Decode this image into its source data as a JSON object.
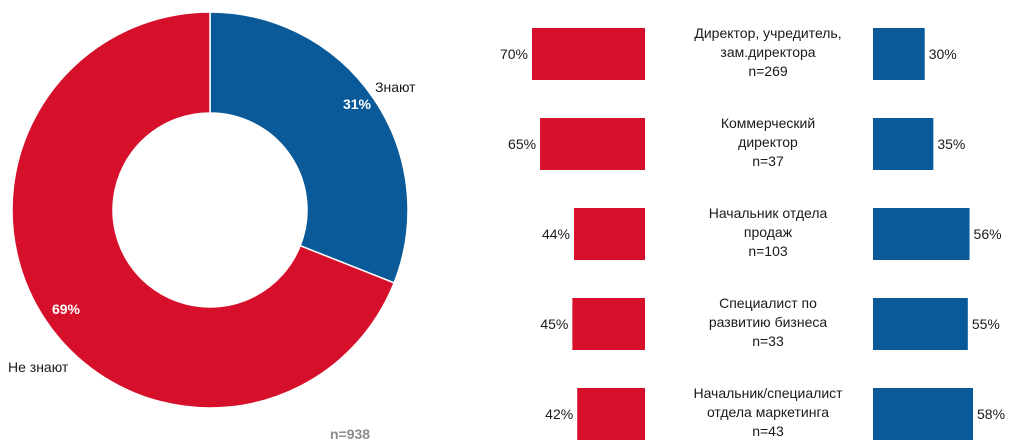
{
  "colors": {
    "red": "#d6102a",
    "blue": "#0a5a99"
  },
  "chart_data": [
    {
      "type": "pie",
      "variant": "donut",
      "slices": [
        {
          "label": "Знают",
          "value": 31,
          "display": "31%",
          "color": "#0a5a99"
        },
        {
          "label": "Не знают",
          "value": 69,
          "display": "69%",
          "color": "#d6102a"
        }
      ],
      "footnote": "n=938"
    },
    {
      "type": "bar",
      "orientation": "horizontal",
      "layout": "diverging",
      "categories": [
        {
          "lines": [
            "Директор, учредитель,",
            "зам.директора",
            "n=269"
          ]
        },
        {
          "lines": [
            "Коммерческий",
            "директор",
            "n=37"
          ]
        },
        {
          "lines": [
            "Начальник отдела",
            "продаж",
            "n=103"
          ]
        },
        {
          "lines": [
            "Специалист по",
            "развитию бизнеса",
            "n=33"
          ]
        },
        {
          "lines": [
            "Начальник/специалист",
            "отдела маркетинга",
            "n=43"
          ]
        }
      ],
      "series": [
        {
          "color": "#d6102a",
          "values": [
            70,
            65,
            44,
            45,
            42
          ],
          "labels": [
            "70%",
            "65%",
            "44%",
            "45%",
            "42%"
          ]
        },
        {
          "color": "#0a5a99",
          "values": [
            30,
            35,
            56,
            55,
            58
          ],
          "labels": [
            "30%",
            "35%",
            "56%",
            "55%",
            "58%"
          ]
        }
      ]
    }
  ]
}
